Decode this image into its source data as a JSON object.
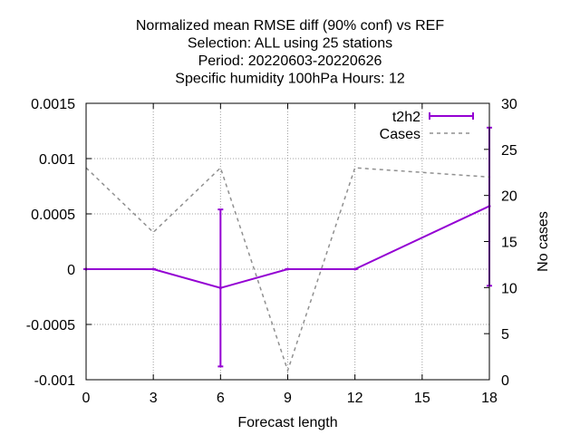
{
  "chart_data": {
    "type": "line",
    "title_lines": [
      "Normalized mean RMSE diff (90% conf) vs REF",
      "Selection: ALL using     25 stations",
      "Period: 20220603-20220626",
      "Specific humidity 100hPa   Hours:  12"
    ],
    "xlabel": "Forecast length",
    "ylabel": "",
    "y2label": "No cases",
    "xlim": [
      0,
      18
    ],
    "ylim": [
      -0.001,
      0.0015
    ],
    "y2lim": [
      0,
      30
    ],
    "xticks": [
      "0",
      "3",
      "6",
      "9",
      "12",
      "15",
      "18"
    ],
    "xtick_values": [
      0,
      3,
      6,
      9,
      12,
      15,
      18
    ],
    "yticks": [
      "-0.001",
      "-0.0005",
      "0",
      "0.0005",
      "0.001",
      "0.0015"
    ],
    "ytick_values": [
      -0.001,
      -0.0005,
      0,
      0.0005,
      0.001,
      0.0015
    ],
    "y2ticks": [
      "0",
      "5",
      "10",
      "15",
      "20",
      "25",
      "30"
    ],
    "y2tick_values": [
      0,
      5,
      10,
      15,
      20,
      25,
      30
    ],
    "grid": true,
    "legend_position": "top-right",
    "series": [
      {
        "name": "t2h2",
        "color": "#9400d3",
        "axis": "y1",
        "style": "errorbars",
        "x": [
          0,
          3,
          6,
          9,
          12,
          18
        ],
        "y": [
          0,
          0,
          -0.00017,
          0,
          0,
          0.00057
        ],
        "ylow": [
          0,
          0,
          -0.00088,
          0,
          0,
          -0.00015
        ],
        "yhigh": [
          0,
          0,
          0.00054,
          0,
          0,
          0.00128
        ]
      },
      {
        "name": "Cases",
        "color": "#909090",
        "axis": "y2",
        "style": "dashed",
        "x": [
          0,
          3,
          6,
          9,
          12,
          18
        ],
        "y": [
          23,
          16,
          23,
          1,
          23,
          22
        ]
      }
    ]
  }
}
